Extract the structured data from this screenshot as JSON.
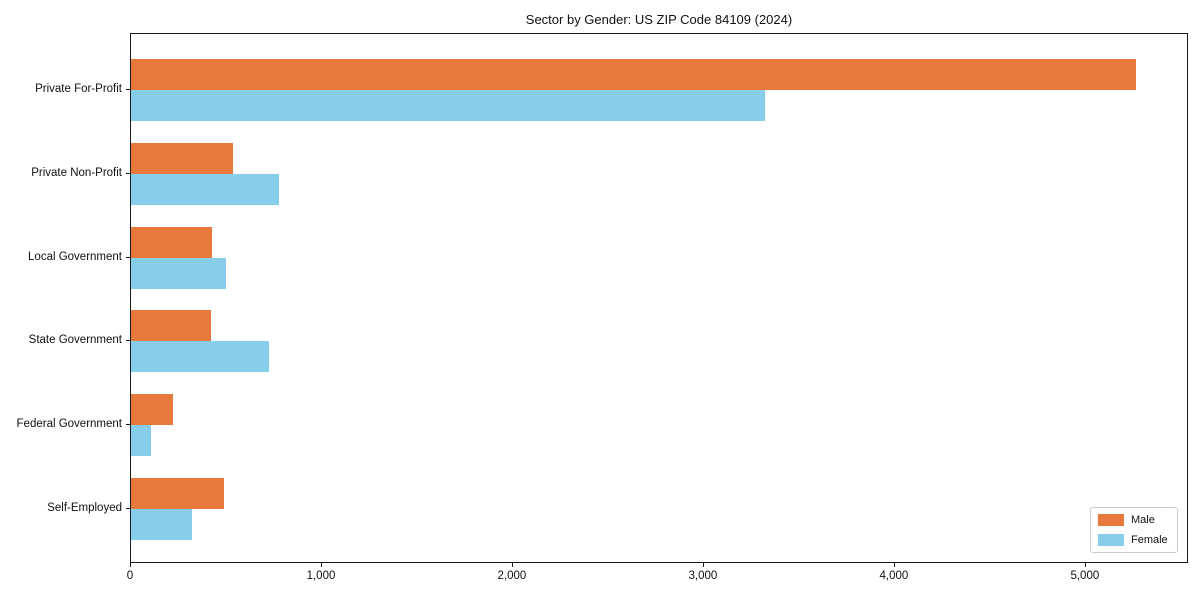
{
  "title": "Sector by Gender: US ZIP Code 84109 (2024)",
  "legend": {
    "position": "lower right",
    "items": [
      "Male",
      "Female"
    ]
  },
  "chart_data": {
    "type": "bar",
    "orientation": "horizontal",
    "title": "Sector by Gender: US ZIP Code 84109 (2024)",
    "categories": [
      "Private For-Profit",
      "Private Non-Profit",
      "Local Government",
      "State Government",
      "Federal Government",
      "Self-Employed"
    ],
    "series": [
      {
        "name": "Male",
        "color": "#E8793D",
        "values": [
          5260,
          535,
          425,
          420,
          220,
          485
        ]
      },
      {
        "name": "Female",
        "color": "#87CEEB",
        "values": [
          3320,
          775,
          500,
          720,
          105,
          320
        ]
      }
    ],
    "xlabel": "",
    "ylabel": "",
    "xlim": [
      0,
      5540
    ],
    "x_ticks": [
      0,
      1000,
      2000,
      3000,
      4000,
      5000
    ],
    "x_tick_labels": [
      "0",
      "1,000",
      "2,000",
      "3,000",
      "4,000",
      "5,000"
    ],
    "grid": false,
    "legend_position": "lower right"
  }
}
